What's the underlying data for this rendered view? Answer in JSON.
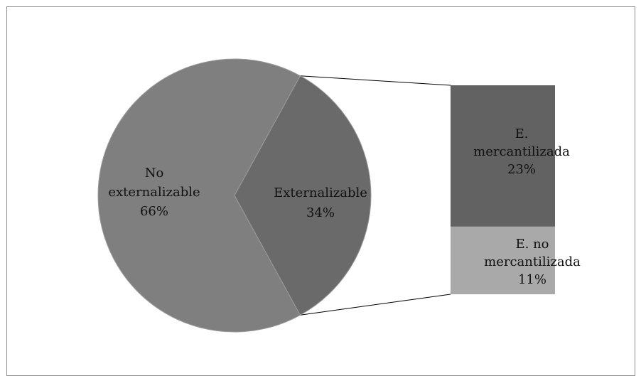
{
  "chart_data": {
    "type": "bar-of-pie",
    "title": "",
    "pie": {
      "slices": [
        {
          "label_lines": [
            "No",
            "externalizable"
          ],
          "percent_label": "66%",
          "value": 66,
          "color": "#7f7f7f"
        },
        {
          "label_lines": [
            "Externalizable"
          ],
          "percent_label": "34%",
          "value": 34,
          "color": "#6a6a6a"
        }
      ]
    },
    "bar": {
      "exploded_slice": "Externalizable",
      "segments": [
        {
          "label_lines": [
            "E.",
            "mercantilizada"
          ],
          "percent_label": "23%",
          "value": 23,
          "color": "#626262"
        },
        {
          "label_lines": [
            "E. no",
            "mercantilizada"
          ],
          "percent_label": "11%",
          "value": 11,
          "color": "#a9a9a9"
        }
      ]
    },
    "colors": {
      "connector": "#000000",
      "slice_edge": "#9a9a9a",
      "frame": "#8c8c8c"
    }
  }
}
